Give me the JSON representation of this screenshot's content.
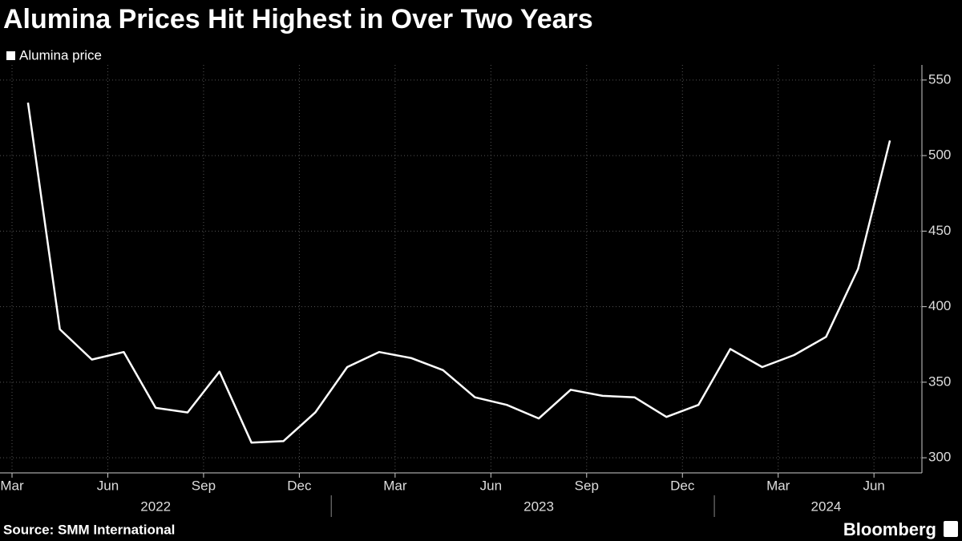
{
  "chart_data": {
    "type": "line",
    "title": "Alumina Prices Hit Highest in Over Two Years",
    "source": "Source: SMM International",
    "brand": "Bloomberg",
    "x": [
      "2022-03",
      "2022-04",
      "2022-05",
      "2022-06",
      "2022-07",
      "2022-08",
      "2022-09",
      "2022-10",
      "2022-11",
      "2022-12",
      "2023-01",
      "2023-02",
      "2023-03",
      "2023-04",
      "2023-05",
      "2023-06",
      "2023-07",
      "2023-08",
      "2023-09",
      "2023-10",
      "2023-11",
      "2023-12",
      "2024-01",
      "2024-02",
      "2024-03",
      "2024-04",
      "2024-05",
      "2024-06"
    ],
    "series": [
      {
        "name": "Alumina price",
        "color": "#ffffff",
        "values": [
          535,
          385,
          365,
          370,
          333,
          330,
          357,
          310,
          311,
          330,
          360,
          370,
          366,
          358,
          340,
          335,
          326,
          345,
          341,
          340,
          327,
          335,
          372,
          360,
          368,
          380,
          425,
          510
        ]
      }
    ],
    "xlim": [
      "2022-03",
      "2024-07"
    ],
    "xticks": [
      {
        "value": "2022-03",
        "label": "Mar"
      },
      {
        "value": "2022-06",
        "label": "Jun"
      },
      {
        "value": "2022-09",
        "label": "Sep"
      },
      {
        "value": "2022-12",
        "label": "Dec"
      },
      {
        "value": "2023-03",
        "label": "Mar"
      },
      {
        "value": "2023-06",
        "label": "Jun"
      },
      {
        "value": "2023-09",
        "label": "Sep"
      },
      {
        "value": "2023-12",
        "label": "Dec"
      },
      {
        "value": "2024-03",
        "label": "Mar"
      },
      {
        "value": "2024-06",
        "label": "Jun"
      }
    ],
    "years": [
      "2022",
      "2023",
      "2024"
    ],
    "ylim": [
      290,
      560
    ],
    "yticks": [
      300,
      350,
      400,
      450,
      500,
      550
    ],
    "grid": true
  }
}
